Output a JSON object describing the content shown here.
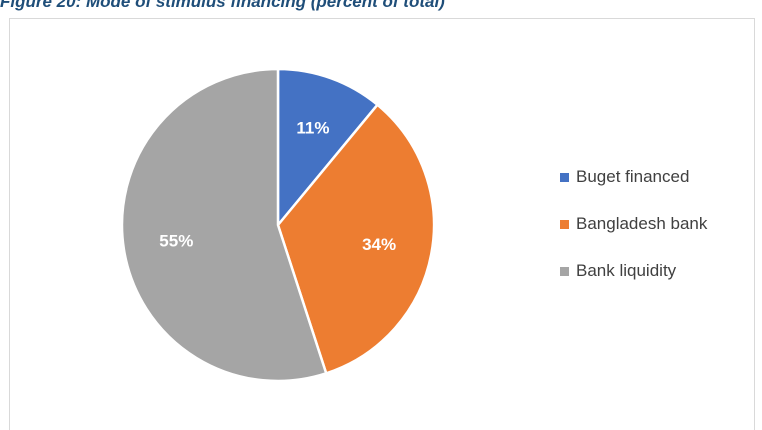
{
  "figure": {
    "caption": "Figure 20: Mode of stimulus financing (percent of total)"
  },
  "chart_data": {
    "type": "pie",
    "start_angle_deg": 0,
    "direction": "clockwise",
    "slices": [
      {
        "label": "Buget financed",
        "value": 11,
        "data_label": "11%",
        "color": "#4472c4"
      },
      {
        "label": "Bangladesh bank",
        "value": 34,
        "data_label": "34%",
        "color": "#ed7d31"
      },
      {
        "label": "Bank liquidity",
        "value": 55,
        "data_label": "55%",
        "color": "#a5a5a5"
      }
    ],
    "legend_position": "right",
    "data_label_color": "#ffffff"
  }
}
